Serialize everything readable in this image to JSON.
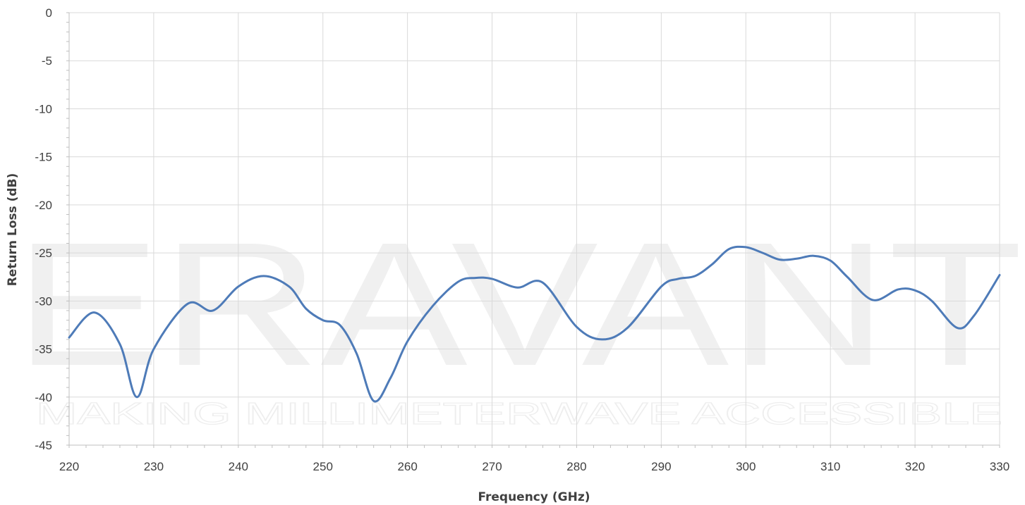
{
  "watermark": {
    "brand": "ERAVANT",
    "tagline": "MAKING MILLIMETERWAVE ACCESSIBLE"
  },
  "chart_data": {
    "type": "line",
    "title": "",
    "xlabel": "Frequency (GHz)",
    "ylabel": "Return Loss (dB)",
    "xlim": [
      220,
      330
    ],
    "ylim": [
      -45,
      0
    ],
    "x_ticks": [
      220,
      230,
      240,
      250,
      260,
      270,
      280,
      290,
      300,
      310,
      320,
      330
    ],
    "y_ticks": [
      0,
      -5,
      -10,
      -15,
      -20,
      -25,
      -30,
      -35,
      -40,
      -45
    ],
    "grid": true,
    "legend": "none",
    "series": [
      {
        "color": "#4e7bb8",
        "x": [
          220,
          223,
          226,
          228,
          230,
          234,
          237,
          240,
          243,
          246,
          248,
          250,
          252,
          254,
          256,
          258,
          260,
          263,
          266,
          268,
          270,
          273,
          276,
          280,
          283,
          286,
          290,
          292,
          294,
          296,
          298,
          300,
          302,
          304,
          306,
          308,
          310,
          312,
          315,
          318,
          320,
          322,
          325,
          327,
          330
        ],
        "y": [
          -33.8,
          -31.2,
          -34.5,
          -40.0,
          -35.0,
          -30.3,
          -31.0,
          -28.5,
          -27.4,
          -28.5,
          -30.8,
          -32.0,
          -32.5,
          -35.5,
          -40.4,
          -38.0,
          -34.2,
          -30.5,
          -28.0,
          -27.6,
          -27.7,
          -28.6,
          -28.1,
          -32.7,
          -34.0,
          -32.8,
          -28.5,
          -27.7,
          -27.4,
          -26.2,
          -24.6,
          -24.4,
          -25.0,
          -25.7,
          -25.6,
          -25.3,
          -25.8,
          -27.5,
          -29.9,
          -28.8,
          -28.9,
          -30.0,
          -32.8,
          -31.5,
          -27.3
        ]
      }
    ]
  }
}
